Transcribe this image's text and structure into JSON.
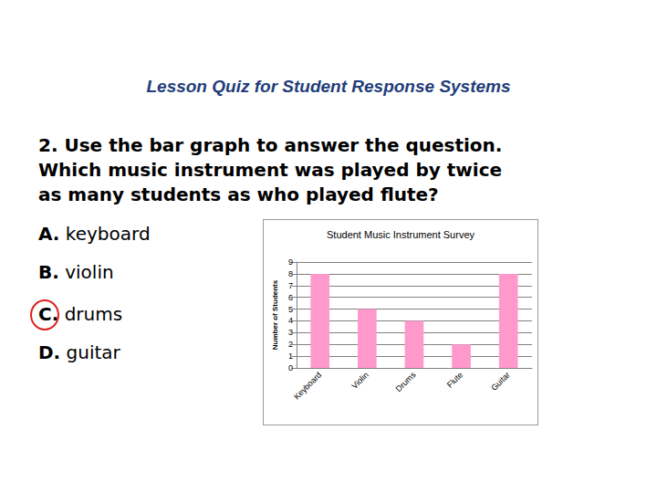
{
  "header": {
    "title": "Lesson Quiz for Student Response Systems"
  },
  "question": [
    "2. Use the bar graph to answer the question.",
    "Which music instrument was played by twice",
    "as many students as who played flute?"
  ],
  "options": [
    {
      "letter": "A.",
      "text": "keyboard"
    },
    {
      "letter": "B.",
      "text": "violin"
    },
    {
      "letter": "C.",
      "text": "drums"
    },
    {
      "letter": "D.",
      "text": "guitar"
    }
  ],
  "circled": "C.",
  "chart_data": {
    "type": "bar",
    "title": "Student Music Instrument Survey",
    "y_label": "Number of Students",
    "categories": [
      "Keyboard",
      "Violin",
      "Drums",
      "Flute",
      "Guitar"
    ],
    "values": [
      8,
      5,
      4,
      2,
      8
    ],
    "color": "#ff99cc",
    "ylim": [
      0,
      9
    ],
    "yticks": [
      0,
      1,
      2,
      3,
      4,
      5,
      6,
      7,
      8,
      9
    ],
    "grid": true
  }
}
